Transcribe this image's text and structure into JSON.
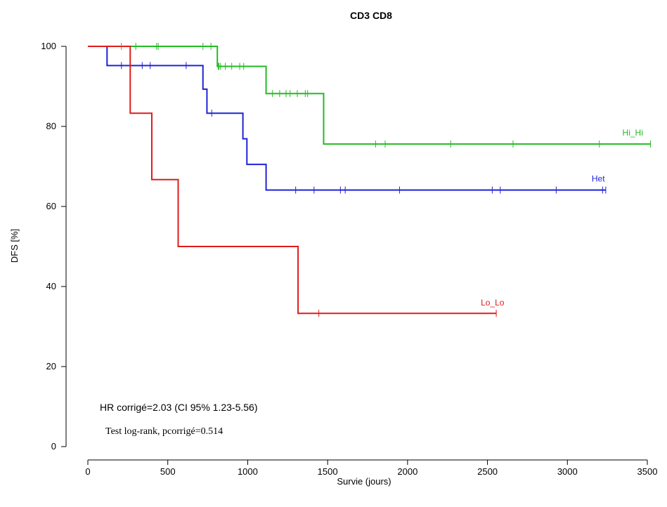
{
  "chart_data": {
    "type": "line",
    "title": "CD3 CD8",
    "xlabel": "Survie (jours)",
    "ylabel": "DFS [%]",
    "xlim": [
      -100,
      3600
    ],
    "ylim": [
      0,
      100
    ],
    "x_ticks": [
      0,
      500,
      1000,
      1500,
      2000,
      2500,
      3000,
      3500
    ],
    "y_ticks": [
      0,
      20,
      40,
      60,
      80,
      100
    ],
    "grid": false,
    "legend": "none",
    "annotations": {
      "hr": "HR corrigé=2.03 (CI 95% 1.23-5.56)",
      "logrank": "Test log-rank, pcorrigé=0.514"
    },
    "series": [
      {
        "name": "Hi_Hi",
        "color": "#22bb22",
        "label_color": "#22bb22",
        "steps": [
          [
            0,
            100
          ],
          [
            810,
            95.0
          ],
          [
            1115,
            88.2
          ],
          [
            1475,
            75.6
          ]
        ],
        "end_x": 3520,
        "censored": [
          210,
          300,
          430,
          440,
          720,
          770,
          815,
          820,
          830,
          860,
          900,
          950,
          975,
          1155,
          1200,
          1240,
          1265,
          1310,
          1360,
          1375,
          1800,
          1860,
          2270,
          2660,
          3200,
          3520
        ]
      },
      {
        "name": "Het",
        "color": "#1f22d6",
        "label_color": "#1f22d6",
        "steps": [
          [
            0,
            100
          ],
          [
            120,
            95.2
          ],
          [
            720,
            89.3
          ],
          [
            745,
            83.3
          ],
          [
            970,
            76.9
          ],
          [
            995,
            70.5
          ],
          [
            1115,
            64.1
          ]
        ],
        "end_x": 3240,
        "censored": [
          210,
          340,
          390,
          615,
          775,
          1300,
          1415,
          1580,
          1610,
          1950,
          2530,
          2580,
          2930,
          3220,
          3240
        ]
      },
      {
        "name": "Lo_Lo",
        "color": "#e01b1b",
        "label_color": "#e01b1b",
        "steps": [
          [
            0,
            100
          ],
          [
            265,
            83.3
          ],
          [
            400,
            66.7
          ],
          [
            565,
            50.0
          ],
          [
            1315,
            33.3
          ]
        ],
        "end_x": 2555,
        "censored": [
          1445,
          2555
        ]
      }
    ]
  }
}
